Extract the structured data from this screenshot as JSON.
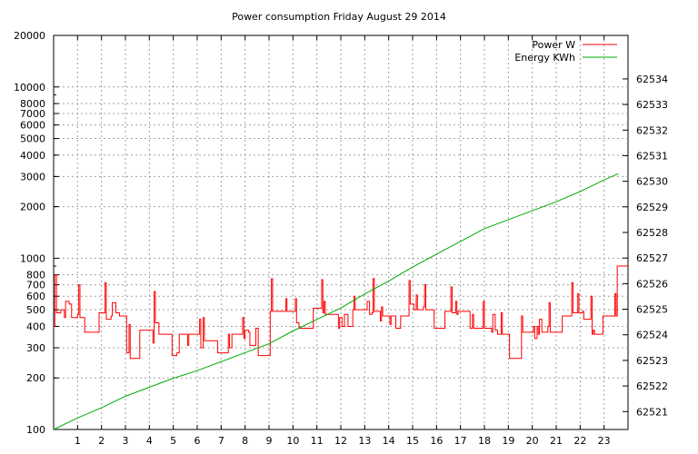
{
  "chart_data": {
    "type": "line",
    "title": "Power consumption Friday August 29 2014",
    "x": {
      "min": 0,
      "max": 24,
      "ticks": [
        1,
        2,
        3,
        4,
        5,
        6,
        7,
        8,
        9,
        10,
        11,
        12,
        13,
        14,
        15,
        16,
        17,
        18,
        19,
        20,
        21,
        22,
        23
      ]
    },
    "y": {
      "scale": "log",
      "min": 100,
      "max": 20000,
      "tick_labels": [
        "100",
        "200",
        "300",
        "400",
        "500",
        "600",
        "700",
        "800",
        "1000",
        "2000",
        "3000",
        "4000",
        "5000",
        "6000",
        "7000",
        "8000",
        "10000",
        "20000"
      ]
    },
    "y2": {
      "min": 62520.3,
      "max": 62535.7,
      "tick_labels": [
        "62521",
        "62522",
        "62523",
        "62524",
        "62525",
        "62526",
        "62527",
        "62528",
        "62529",
        "62530",
        "62531",
        "62532",
        "62533",
        "62534"
      ]
    },
    "grid": true,
    "legend_position": "top-right",
    "series": [
      {
        "name": "Power W",
        "color": "#ff0000",
        "axis": "y",
        "step": true,
        "points": [
          [
            0,
            400
          ],
          [
            0.05,
            800
          ],
          [
            0.12,
            480
          ],
          [
            0.3,
            500
          ],
          [
            0.45,
            450
          ],
          [
            0.5,
            560
          ],
          [
            0.65,
            540
          ],
          [
            0.75,
            450
          ],
          [
            1.0,
            470
          ],
          [
            1.05,
            700
          ],
          [
            1.1,
            450
          ],
          [
            1.3,
            370
          ],
          [
            1.85,
            370
          ],
          [
            1.9,
            480
          ],
          [
            2.15,
            720
          ],
          [
            2.2,
            440
          ],
          [
            2.4,
            460
          ],
          [
            2.45,
            550
          ],
          [
            2.6,
            480
          ],
          [
            2.75,
            460
          ],
          [
            3.0,
            460
          ],
          [
            3.05,
            280
          ],
          [
            3.15,
            410
          ],
          [
            3.2,
            260
          ],
          [
            3.55,
            260
          ],
          [
            3.6,
            380
          ],
          [
            4.1,
            380
          ],
          [
            4.15,
            320
          ],
          [
            4.2,
            640
          ],
          [
            4.25,
            420
          ],
          [
            4.4,
            360
          ],
          [
            4.9,
            360
          ],
          [
            4.95,
            270
          ],
          [
            5.1,
            270
          ],
          [
            5.15,
            280
          ],
          [
            5.25,
            360
          ],
          [
            5.5,
            360
          ],
          [
            5.6,
            310
          ],
          [
            5.65,
            360
          ],
          [
            6.05,
            360
          ],
          [
            6.1,
            440
          ],
          [
            6.15,
            300
          ],
          [
            6.25,
            450
          ],
          [
            6.3,
            330
          ],
          [
            6.8,
            330
          ],
          [
            6.85,
            280
          ],
          [
            7.25,
            280
          ],
          [
            7.3,
            360
          ],
          [
            7.35,
            300
          ],
          [
            7.45,
            360
          ],
          [
            7.85,
            360
          ],
          [
            7.9,
            450
          ],
          [
            7.95,
            340
          ],
          [
            8.0,
            380
          ],
          [
            8.15,
            370
          ],
          [
            8.2,
            310
          ],
          [
            8.4,
            310
          ],
          [
            8.45,
            390
          ],
          [
            8.55,
            270
          ],
          [
            9.0,
            270
          ],
          [
            9.05,
            490
          ],
          [
            9.1,
            760
          ],
          [
            9.15,
            490
          ],
          [
            9.65,
            490
          ],
          [
            9.7,
            580
          ],
          [
            9.75,
            490
          ],
          [
            10.05,
            490
          ],
          [
            10.1,
            580
          ],
          [
            10.15,
            420
          ],
          [
            10.25,
            390
          ],
          [
            10.8,
            390
          ],
          [
            10.85,
            510
          ],
          [
            11.15,
            510
          ],
          [
            11.2,
            750
          ],
          [
            11.25,
            480
          ],
          [
            11.3,
            560
          ],
          [
            11.35,
            470
          ],
          [
            11.85,
            470
          ],
          [
            11.9,
            390
          ],
          [
            11.95,
            450
          ],
          [
            12.05,
            400
          ],
          [
            12.15,
            470
          ],
          [
            12.3,
            400
          ],
          [
            12.45,
            400
          ],
          [
            12.5,
            500
          ],
          [
            12.55,
            600
          ],
          [
            12.6,
            500
          ],
          [
            13.05,
            500
          ],
          [
            13.1,
            560
          ],
          [
            13.2,
            470
          ],
          [
            13.3,
            480
          ],
          [
            13.35,
            760
          ],
          [
            13.4,
            490
          ],
          [
            13.6,
            490
          ],
          [
            13.65,
            430
          ],
          [
            13.7,
            520
          ],
          [
            13.75,
            460
          ],
          [
            14.0,
            460
          ],
          [
            14.05,
            410
          ],
          [
            14.1,
            460
          ],
          [
            14.25,
            460
          ],
          [
            14.3,
            390
          ],
          [
            14.45,
            390
          ],
          [
            14.5,
            460
          ],
          [
            14.8,
            460
          ],
          [
            14.85,
            740
          ],
          [
            14.9,
            540
          ],
          [
            15.0,
            540
          ],
          [
            15.05,
            500
          ],
          [
            15.15,
            610
          ],
          [
            15.2,
            500
          ],
          [
            15.45,
            520
          ],
          [
            15.5,
            700
          ],
          [
            15.55,
            500
          ],
          [
            15.85,
            500
          ],
          [
            15.9,
            390
          ],
          [
            16.3,
            390
          ],
          [
            16.35,
            490
          ],
          [
            16.55,
            490
          ],
          [
            16.6,
            680
          ],
          [
            16.65,
            480
          ],
          [
            16.8,
            560
          ],
          [
            16.85,
            470
          ],
          [
            16.9,
            490
          ],
          [
            17.35,
            490
          ],
          [
            17.4,
            390
          ],
          [
            17.5,
            470
          ],
          [
            17.55,
            390
          ],
          [
            17.9,
            390
          ],
          [
            17.95,
            560
          ],
          [
            18.0,
            390
          ],
          [
            18.3,
            370
          ],
          [
            18.35,
            470
          ],
          [
            18.45,
            380
          ],
          [
            18.55,
            360
          ],
          [
            18.7,
            480
          ],
          [
            18.75,
            360
          ],
          [
            18.85,
            360
          ],
          [
            19.0,
            360
          ],
          [
            19.05,
            260
          ],
          [
            19.5,
            260
          ],
          [
            19.55,
            460
          ],
          [
            19.6,
            370
          ],
          [
            20.0,
            370
          ],
          [
            20.05,
            400
          ],
          [
            20.1,
            340
          ],
          [
            20.2,
            400
          ],
          [
            20.25,
            360
          ],
          [
            20.3,
            440
          ],
          [
            20.35,
            440
          ],
          [
            20.4,
            370
          ],
          [
            20.6,
            370
          ],
          [
            20.65,
            400
          ],
          [
            20.7,
            550
          ],
          [
            20.75,
            370
          ],
          [
            21.2,
            370
          ],
          [
            21.25,
            460
          ],
          [
            21.6,
            460
          ],
          [
            21.65,
            720
          ],
          [
            21.7,
            480
          ],
          [
            21.85,
            480
          ],
          [
            21.9,
            620
          ],
          [
            21.95,
            480
          ],
          [
            22.1,
            490
          ],
          [
            22.15,
            440
          ],
          [
            22.4,
            440
          ],
          [
            22.45,
            600
          ],
          [
            22.5,
            360
          ],
          [
            22.55,
            380
          ],
          [
            22.6,
            360
          ],
          [
            22.9,
            360
          ],
          [
            22.95,
            460
          ],
          [
            23.4,
            460
          ],
          [
            23.45,
            620
          ],
          [
            23.5,
            460
          ],
          [
            23.55,
            900
          ]
        ]
      },
      {
        "name": "Energy KWh",
        "color": "#00aa00",
        "axis": "y2",
        "step": false,
        "points": [
          [
            0,
            62520.3
          ],
          [
            1,
            62520.75
          ],
          [
            2,
            62521.15
          ],
          [
            3,
            62521.6
          ],
          [
            4,
            62521.95
          ],
          [
            5,
            62522.3
          ],
          [
            6,
            62522.6
          ],
          [
            7,
            62522.95
          ],
          [
            8,
            62523.3
          ],
          [
            9,
            62523.65
          ],
          [
            10,
            62524.15
          ],
          [
            11,
            62524.6
          ],
          [
            12,
            62525.05
          ],
          [
            13,
            62525.6
          ],
          [
            14,
            62526.1
          ],
          [
            15,
            62526.65
          ],
          [
            16,
            62527.15
          ],
          [
            17,
            62527.65
          ],
          [
            18,
            62528.15
          ],
          [
            19,
            62528.5
          ],
          [
            20,
            62528.85
          ],
          [
            21,
            62529.2
          ],
          [
            22,
            62529.6
          ],
          [
            23,
            62530.05
          ],
          [
            23.6,
            62530.3
          ]
        ]
      }
    ]
  }
}
